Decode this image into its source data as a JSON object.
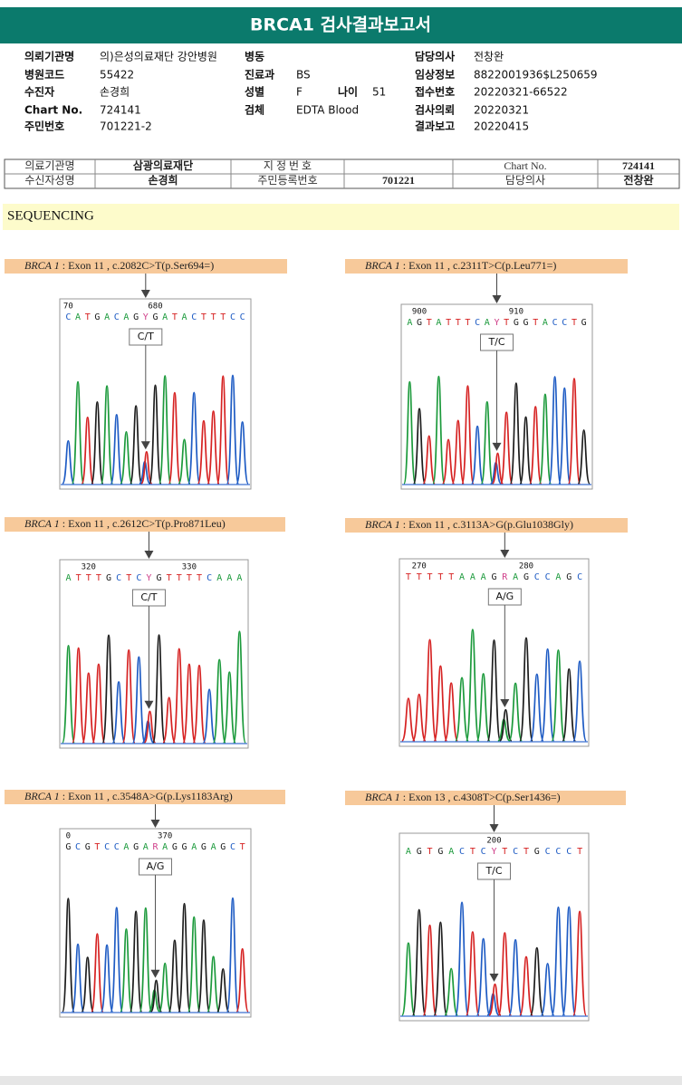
{
  "header": {
    "title": "BRCA1 검사결과보고서"
  },
  "info": {
    "col1": [
      [
        "의뢰기관명",
        "의)은성의료재단 강안병원"
      ],
      [
        "병원코드",
        "55422"
      ],
      [
        "수진자",
        "손경희"
      ],
      [
        "Chart No.",
        "724141"
      ],
      [
        "주민번호",
        "701221-2"
      ]
    ],
    "col2": [
      [
        "병동"
      ],
      [
        "진료과",
        "BS"
      ],
      [
        "성별",
        "F",
        "나이",
        "51"
      ],
      [
        "검체",
        "EDTA Blood"
      ]
    ],
    "col3": [
      [
        "담당의사",
        "전창완"
      ],
      [
        "임상정보",
        "8822001936$L250659"
      ],
      [
        "접수번호",
        "20220321-66522"
      ],
      [
        "검사의뢰",
        "20220321"
      ],
      [
        "결과보고",
        "20220415"
      ]
    ]
  },
  "table": {
    "rows": [
      [
        "의료기관명",
        "삼광의료재단",
        "지 정 번 호",
        null,
        "Chart No.",
        "724141"
      ],
      [
        "수신자성명",
        "손경희",
        "주민등록번호",
        "701221",
        "담당의사",
        "전창완"
      ]
    ]
  },
  "section": {
    "title": "SEQUENCING"
  },
  "panels": [
    {
      "label": {
        "gene": "BRCA 1",
        "text": " : Exon 11 , c.2082C>T(p.Ser694=)"
      },
      "ruler": [
        "70",
        "680"
      ],
      "sequence": "CATGACAGYGATACTTTCC",
      "call": "C/T"
    },
    {
      "label": {
        "gene": "BRCA 1",
        "text": " : Exon 11 , c.2311T>C(p.Leu771=)"
      },
      "ruler": [
        "900",
        "910"
      ],
      "sequence": "AGTATTTCAYTGGTACCTG",
      "call": "T/C"
    },
    {
      "label": {
        "gene": "BRCA 1",
        "text": " : Exon 11 , c.2612C>T(p.Pro871Leu)"
      },
      "ruler": [
        "320",
        "330"
      ],
      "sequence": "ATTTGCTCYGTTTTCAAA",
      "call": "C/T"
    },
    {
      "label": {
        "gene": "BRCA 1",
        "text": " : Exon 11 , c.3113A>G(p.Glu1038Gly)"
      },
      "ruler": [
        "270",
        "280"
      ],
      "sequence": "TTTTTAAAGRAGCCAGC",
      "call": "A/G"
    },
    {
      "label": {
        "gene": "BRCA 1",
        "text": " : Exon 11 , c.3548A>G(p.Lys1183Arg)"
      },
      "ruler": [
        "0",
        "370"
      ],
      "sequence": "GCGTCCAGARAGGAGAGCT",
      "call": "A/G"
    },
    {
      "label": {
        "gene": "BRCA 1",
        "text": " : Exon 13 , c.4308T>C(p.Ser1436=)"
      },
      "ruler": [
        "200"
      ],
      "sequence": "AGTGACTCYTCTGCCCT",
      "call": "T/C"
    }
  ]
}
